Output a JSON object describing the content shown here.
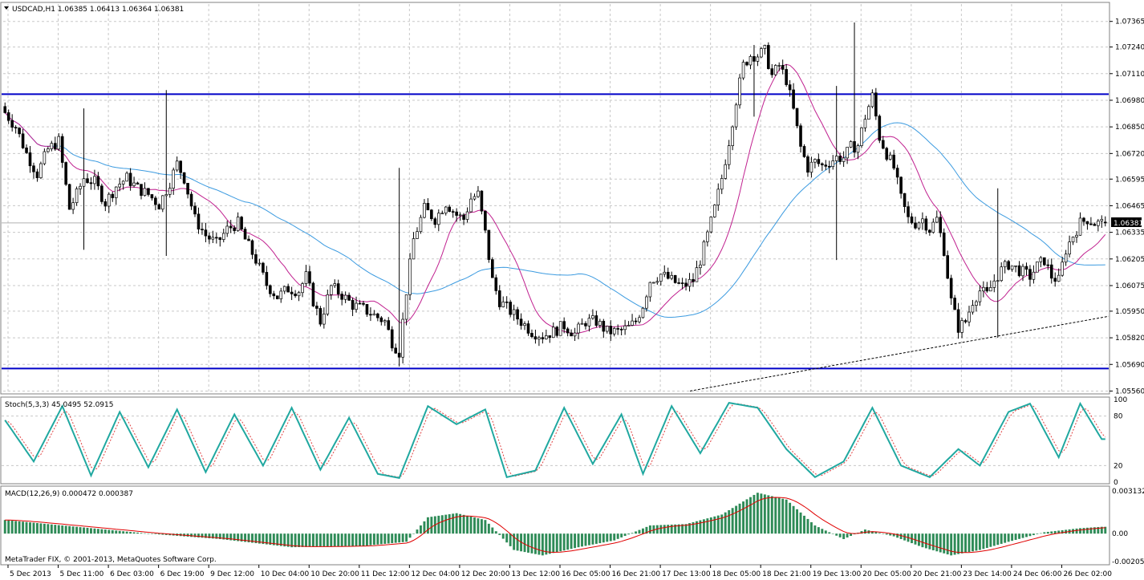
{
  "window": {
    "header_text": "USDCAD,H1  1.06385 1.06413 1.06364 1.06381",
    "copyright": "MetaTrader FIX, © 2001-2013, MetaQuotes Software Corp."
  },
  "price_panel": {
    "price_ticks": [
      "1.07365",
      "1.07240",
      "1.07110",
      "1.06980",
      "1.06850",
      "1.06720",
      "1.06595",
      "1.06465",
      "1.06335",
      "1.06205",
      "1.06075",
      "1.05950",
      "1.05820",
      "1.05690",
      "1.05560"
    ],
    "current_price_label": "1.06381",
    "levels": [
      1.0701,
      1.0567
    ],
    "colors": {
      "bull": "#000000",
      "bear": "#000000",
      "fast_ma": "#c0208f",
      "slow_ma": "#3c9be0",
      "level": "#0000c8",
      "trend": "#000000",
      "grid": "#c8c8c8"
    }
  },
  "stoch_panel": {
    "header_text": "Stoch(5,3,3) 45.0495 52.0915",
    "ticks": [
      "100",
      "80",
      "20",
      "0"
    ],
    "colors": {
      "main": "#20a8a0",
      "signal": "#e04040"
    }
  },
  "macd_panel": {
    "header_text": "MACD(12,26,9) 0.000472 0.000387",
    "ticks": [
      "0.003132",
      "0.00",
      "-0.002051"
    ],
    "colors": {
      "hist": "#2e8b57",
      "signal": "#e00000"
    }
  },
  "time_axis": [
    "5 Dec 2013",
    "5 Dec 11:00",
    "6 Dec 03:00",
    "6 Dec 19:00",
    "9 Dec 12:00",
    "10 Dec 04:00",
    "10 Dec 20:00",
    "11 Dec 12:00",
    "12 Dec 04:00",
    "12 Dec 20:00",
    "13 Dec 12:00",
    "16 Dec 05:00",
    "16 Dec 21:00",
    "17 Dec 13:00",
    "18 Dec 05:00",
    "18 Dec 21:00",
    "19 Dec 13:00",
    "20 Dec 05:00",
    "20 Dec 21:00",
    "23 Dec 14:00",
    "24 Dec 06:00",
    "26 Dec 02:00"
  ],
  "chart_data": {
    "type": "candlestick",
    "symbol": "USDCAD",
    "timeframe": "H1",
    "ohlc_last": {
      "open": 1.06385,
      "high": 1.06413,
      "low": 1.06364,
      "close": 1.06381
    },
    "y_range": [
      1.0555,
      1.0745
    ],
    "close_path": [
      [
        0,
        1.0692
      ],
      [
        3,
        1.0685
      ],
      [
        6,
        1.0672
      ],
      [
        9,
        1.0662
      ],
      [
        12,
        1.0674
      ],
      [
        15,
        1.0678
      ],
      [
        18,
        1.0645
      ],
      [
        20,
        1.0652
      ],
      [
        22,
        1.066
      ],
      [
        25,
        1.0658
      ],
      [
        28,
        1.0648
      ],
      [
        31,
        1.0656
      ],
      [
        34,
        1.066
      ],
      [
        37,
        1.0655
      ],
      [
        40,
        1.0652
      ],
      [
        43,
        1.0647
      ],
      [
        46,
        1.0658
      ],
      [
        48,
        1.0667
      ],
      [
        50,
        1.066
      ],
      [
        53,
        1.064
      ],
      [
        56,
        1.0632
      ],
      [
        59,
        1.0628
      ],
      [
        62,
        1.0635
      ],
      [
        65,
        1.0638
      ],
      [
        67,
        1.063
      ],
      [
        70,
        1.062
      ],
      [
        73,
        1.0608
      ],
      [
        76,
        1.0602
      ],
      [
        79,
        1.0606
      ],
      [
        82,
        1.0605
      ],
      [
        84,
        1.0612
      ],
      [
        86,
        1.06
      ],
      [
        88,
        1.059
      ],
      [
        91,
        1.0607
      ],
      [
        94,
        1.0603
      ],
      [
        97,
        1.0598
      ],
      [
        100,
        1.0596
      ],
      [
        103,
        1.0593
      ],
      [
        106,
        1.059
      ],
      [
        108,
        1.058
      ],
      [
        110,
        1.0575
      ],
      [
        112,
        1.0605
      ],
      [
        114,
        1.063
      ],
      [
        117,
        1.0645
      ],
      [
        120,
        1.064
      ],
      [
        123,
        1.0648
      ],
      [
        126,
        1.0642
      ],
      [
        128,
        1.064
      ],
      [
        130,
        1.065
      ],
      [
        132,
        1.0652
      ],
      [
        134,
        1.0633
      ],
      [
        136,
        1.061
      ],
      [
        138,
        1.06
      ],
      [
        141,
        1.0595
      ],
      [
        144,
        1.059
      ],
      [
        147,
        1.0585
      ],
      [
        150,
        1.0583
      ],
      [
        153,
        1.0585
      ],
      [
        156,
        1.0588
      ],
      [
        159,
        1.0584
      ],
      [
        162,
        1.059
      ],
      [
        165,
        1.059
      ],
      [
        168,
        1.0585
      ],
      [
        171,
        1.0585
      ],
      [
        174,
        1.0587
      ],
      [
        176,
        1.059
      ],
      [
        178,
        1.0598
      ],
      [
        180,
        1.061
      ],
      [
        183,
        1.0613
      ],
      [
        186,
        1.061
      ],
      [
        189,
        1.0607
      ],
      [
        192,
        1.061
      ],
      [
        194,
        1.062
      ],
      [
        196,
        1.0632
      ],
      [
        198,
        1.0645
      ],
      [
        200,
        1.066
      ],
      [
        202,
        1.0678
      ],
      [
        204,
        1.0698
      ],
      [
        206,
        1.0715
      ],
      [
        208,
        1.072
      ],
      [
        210,
        1.072
      ],
      [
        212,
        1.0722
      ],
      [
        214,
        1.071
      ],
      [
        216,
        1.0715
      ],
      [
        218,
        1.0708
      ],
      [
        220,
        1.0693
      ],
      [
        222,
        1.0675
      ],
      [
        224,
        1.0665
      ],
      [
        226,
        1.0668
      ],
      [
        228,
        1.0666
      ],
      [
        230,
        1.0668
      ],
      [
        232,
        1.067
      ],
      [
        234,
        1.067
      ],
      [
        236,
        1.0675
      ],
      [
        238,
        1.0676
      ],
      [
        240,
        1.069
      ],
      [
        242,
        1.07
      ],
      [
        244,
        1.068
      ],
      [
        246,
        1.0672
      ],
      [
        248,
        1.0665
      ],
      [
        250,
        1.065
      ],
      [
        252,
        1.064
      ],
      [
        254,
        1.0638
      ],
      [
        256,
        1.064
      ],
      [
        258,
        1.0635
      ],
      [
        260,
        1.064
      ],
      [
        262,
        1.0625
      ],
      [
        264,
        1.06
      ],
      [
        266,
        1.0587
      ],
      [
        268,
        1.059
      ],
      [
        270,
        1.06
      ],
      [
        272,
        1.0605
      ],
      [
        274,
        1.0603
      ],
      [
        276,
        1.061
      ],
      [
        278,
        1.0615
      ],
      [
        280,
        1.0618
      ],
      [
        282,
        1.0616
      ],
      [
        284,
        1.0614
      ],
      [
        286,
        1.0612
      ],
      [
        288,
        1.0617
      ],
      [
        290,
        1.062
      ],
      [
        292,
        1.0612
      ],
      [
        294,
        1.061
      ],
      [
        296,
        1.0625
      ],
      [
        298,
        1.0632
      ],
      [
        300,
        1.0638
      ],
      [
        302,
        1.064
      ],
      [
        304,
        1.0638
      ],
      [
        306,
        1.0638
      ]
    ],
    "stoch_path": [
      [
        0,
        75
      ],
      [
        8,
        25
      ],
      [
        16,
        92
      ],
      [
        24,
        8
      ],
      [
        32,
        85
      ],
      [
        40,
        18
      ],
      [
        48,
        88
      ],
      [
        56,
        12
      ],
      [
        64,
        82
      ],
      [
        72,
        20
      ],
      [
        80,
        90
      ],
      [
        88,
        15
      ],
      [
        96,
        78
      ],
      [
        104,
        10
      ],
      [
        110,
        5
      ],
      [
        118,
        92
      ],
      [
        126,
        70
      ],
      [
        134,
        88
      ],
      [
        140,
        6
      ],
      [
        148,
        14
      ],
      [
        156,
        90
      ],
      [
        164,
        22
      ],
      [
        172,
        82
      ],
      [
        178,
        10
      ],
      [
        186,
        92
      ],
      [
        194,
        35
      ],
      [
        202,
        96
      ],
      [
        210,
        90
      ],
      [
        218,
        40
      ],
      [
        226,
        6
      ],
      [
        234,
        25
      ],
      [
        242,
        90
      ],
      [
        250,
        20
      ],
      [
        258,
        6
      ],
      [
        266,
        40
      ],
      [
        272,
        20
      ],
      [
        280,
        85
      ],
      [
        286,
        95
      ],
      [
        294,
        30
      ],
      [
        300,
        95
      ],
      [
        306,
        52
      ]
    ],
    "macd_path": [
      [
        0,
        0.001
      ],
      [
        20,
        0.0005
      ],
      [
        40,
        0.0
      ],
      [
        60,
        -0.0004
      ],
      [
        80,
        -0.001
      ],
      [
        100,
        -0.0009
      ],
      [
        112,
        -0.0006
      ],
      [
        118,
        0.0012
      ],
      [
        126,
        0.0015
      ],
      [
        134,
        0.001
      ],
      [
        142,
        -0.0012
      ],
      [
        150,
        -0.0016
      ],
      [
        160,
        -0.001
      ],
      [
        170,
        -0.0005
      ],
      [
        180,
        0.0006
      ],
      [
        190,
        0.0007
      ],
      [
        200,
        0.0014
      ],
      [
        210,
        0.003
      ],
      [
        218,
        0.0025
      ],
      [
        226,
        0.0006
      ],
      [
        234,
        -0.0004
      ],
      [
        240,
        0.0003
      ],
      [
        248,
        -0.0002
      ],
      [
        256,
        -0.001
      ],
      [
        264,
        -0.0016
      ],
      [
        272,
        -0.0012
      ],
      [
        280,
        -0.0006
      ],
      [
        290,
        0.0001
      ],
      [
        300,
        0.0004
      ],
      [
        306,
        0.0005
      ]
    ]
  }
}
